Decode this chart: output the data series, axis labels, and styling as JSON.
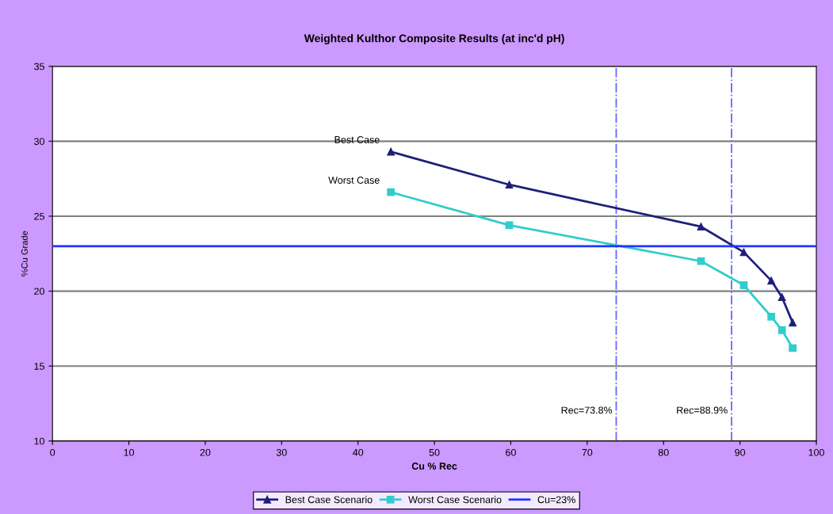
{
  "chart_data": {
    "type": "line",
    "title": "Weighted Kulthor Composite Results (at inc'd pH)",
    "xlabel": "Cu % Rec",
    "ylabel": "%Cu Grade",
    "xlim": [
      0,
      100
    ],
    "xticks": [
      0,
      10,
      20,
      30,
      40,
      50,
      60,
      70,
      80,
      90,
      100
    ],
    "ylim": [
      10,
      35
    ],
    "yticks": [
      10,
      15,
      20,
      25,
      30,
      35
    ],
    "grid": "y",
    "legend": "bottom",
    "series": [
      {
        "name": "Best Case Scenario",
        "color": "#1f1f7a",
        "marker": "triangle",
        "x": [
          44.3,
          59.8,
          84.9,
          90.5,
          94.1,
          95.5,
          96.9
        ],
        "values": [
          29.3,
          27.1,
          24.3,
          22.6,
          20.7,
          19.6,
          17.9
        ]
      },
      {
        "name": "Worst Case Scenario",
        "color": "#33cccc",
        "marker": "square",
        "x": [
          44.3,
          59.8,
          84.9,
          90.5,
          94.1,
          95.5,
          96.9
        ],
        "values": [
          26.6,
          24.4,
          22.0,
          20.4,
          18.3,
          17.4,
          16.2
        ]
      },
      {
        "name": "Cu=23%",
        "color": "#2233ff",
        "marker": "none",
        "x": [
          0,
          100
        ],
        "values": [
          23,
          23
        ]
      }
    ],
    "ref_lines": [
      {
        "axis": "x",
        "value": 73.8,
        "label": "Rec=73.8%",
        "color": "#6666ff",
        "line_style": "dashdot"
      },
      {
        "axis": "x",
        "value": 88.9,
        "label": "Rec=88.9%",
        "color": "#6666ff",
        "line_style": "dashdot"
      }
    ],
    "annotations": [
      {
        "text": "Best Case",
        "x": 44.3,
        "y": 29.3
      },
      {
        "text": "Worst Case",
        "x": 44.3,
        "y": 26.6
      }
    ]
  }
}
